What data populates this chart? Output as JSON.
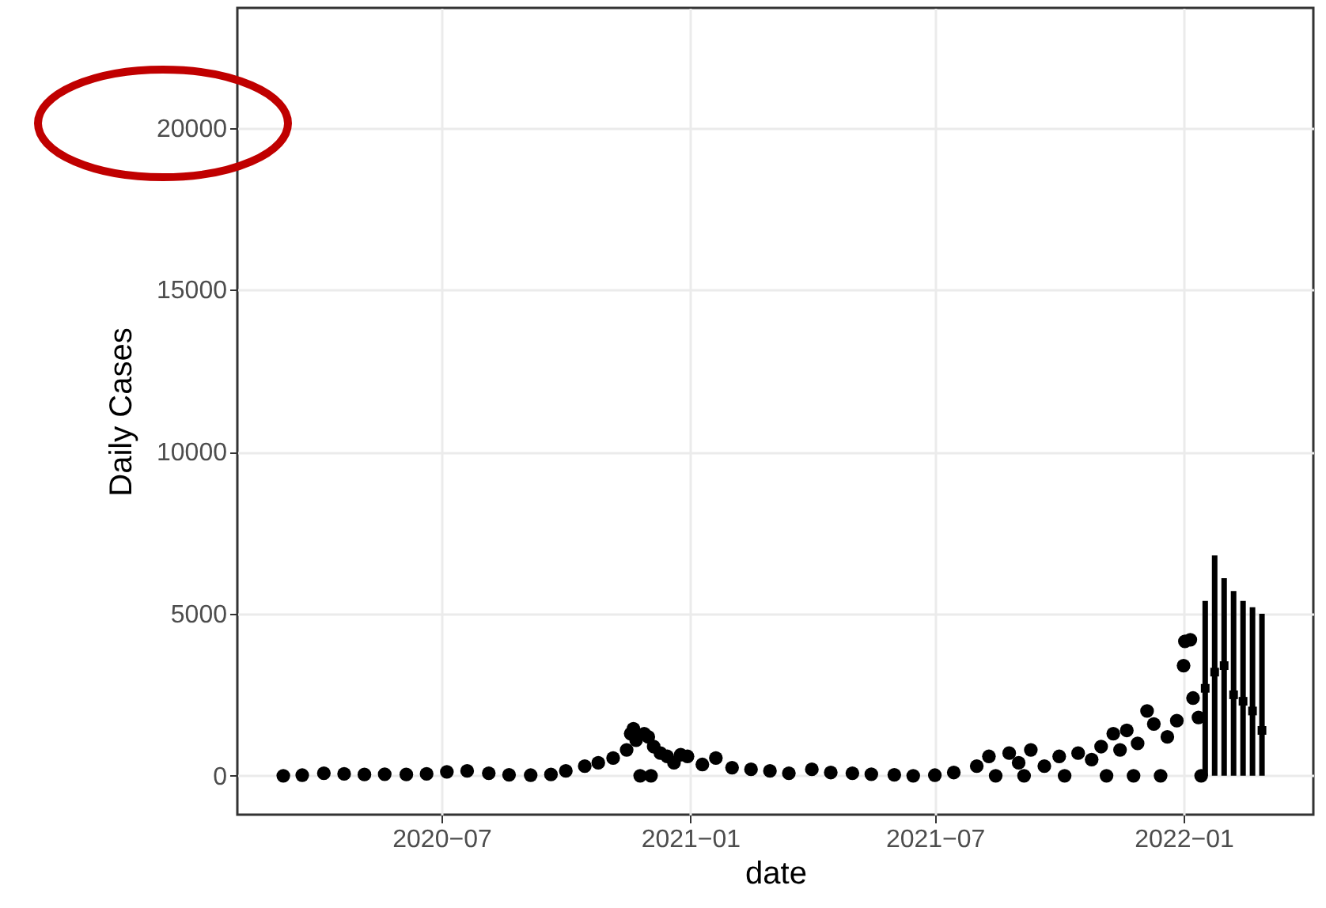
{
  "chart_data": {
    "type": "scatter",
    "xlabel": "date",
    "ylabel": "Daily Cases",
    "xlim": [
      "2020-02-01",
      "2022-04-07"
    ],
    "ylim": [
      -1200,
      23700
    ],
    "xticks": [
      {
        "value": "2020-07-01",
        "label": "2020−07"
      },
      {
        "value": "2021-01-01",
        "label": "2021−01"
      },
      {
        "value": "2021-07-01",
        "label": "2021−07"
      },
      {
        "value": "2022-01-01",
        "label": "2022−01"
      }
    ],
    "yticks": [
      0,
      5000,
      10000,
      15000,
      20000
    ],
    "grid": true,
    "series": [
      {
        "marker": "circle",
        "color": "#000000",
        "x": [
          "2020-03-06",
          "2020-03-20",
          "2020-04-05",
          "2020-04-20",
          "2020-05-05",
          "2020-05-20",
          "2020-06-05",
          "2020-06-20",
          "2020-07-05",
          "2020-07-20",
          "2020-08-05",
          "2020-08-20",
          "2020-09-05",
          "2020-09-20",
          "2020-10-01",
          "2020-10-15",
          "2020-10-25",
          "2020-11-05",
          "2020-11-15",
          "2020-11-18",
          "2020-11-20",
          "2020-11-22",
          "2020-11-25",
          "2020-11-28",
          "2020-12-01",
          "2020-12-03",
          "2020-12-05",
          "2020-12-10",
          "2020-12-15",
          "2020-12-20",
          "2020-12-25",
          "2020-12-30",
          "2021-01-10",
          "2021-01-20",
          "2021-02-01",
          "2021-02-15",
          "2021-03-01",
          "2021-03-15",
          "2021-04-01",
          "2021-04-15",
          "2021-05-01",
          "2021-05-15",
          "2021-06-01",
          "2021-06-15",
          "2021-07-01",
          "2021-07-15",
          "2021-08-01",
          "2021-08-10",
          "2021-08-15",
          "2021-08-25",
          "2021-09-01",
          "2021-09-05",
          "2021-09-10",
          "2021-09-20",
          "2021-10-01",
          "2021-10-05",
          "2021-10-15",
          "2021-10-25",
          "2021-11-01",
          "2021-11-05",
          "2021-11-10",
          "2021-11-15",
          "2021-11-20",
          "2021-11-25",
          "2021-11-28",
          "2021-12-05",
          "2021-12-10",
          "2021-12-15",
          "2021-12-20",
          "2021-12-27",
          "2022-01-01",
          "2022-01-02",
          "2022-01-06",
          "2022-01-08",
          "2022-01-12",
          "2022-01-14"
        ],
        "values": [
          0,
          20,
          80,
          60,
          40,
          50,
          40,
          60,
          120,
          150,
          80,
          30,
          20,
          40,
          150,
          300,
          400,
          550,
          800,
          1300,
          1450,
          1100,
          0,
          1300,
          1200,
          0,
          900,
          700,
          600,
          400,
          650,
          600,
          350,
          550,
          250,
          200,
          150,
          80,
          200,
          100,
          80,
          50,
          30,
          0,
          20,
          100,
          300,
          600,
          0,
          700,
          400,
          0,
          800,
          300,
          600,
          0,
          700,
          500,
          900,
          0,
          1300,
          800,
          1400,
          0,
          1000,
          2000,
          1600,
          0,
          1200,
          1700,
          3400,
          4150,
          4200,
          2400,
          1800,
          0
        ]
      },
      {
        "marker": "square",
        "color": "#000000",
        "x": [
          "2022-01-17",
          "2022-01-24",
          "2022-01-31",
          "2022-02-07",
          "2022-02-14",
          "2022-02-21",
          "2022-02-28"
        ],
        "values": [
          2700,
          3200,
          3400,
          2500,
          2300,
          2000,
          1400
        ],
        "errors": [
          [
            0,
            5400
          ],
          [
            0,
            6800
          ],
          [
            0,
            6100
          ],
          [
            0,
            5700
          ],
          [
            0,
            5400
          ],
          [
            0,
            5200
          ],
          [
            0,
            5000
          ]
        ]
      }
    ]
  }
}
